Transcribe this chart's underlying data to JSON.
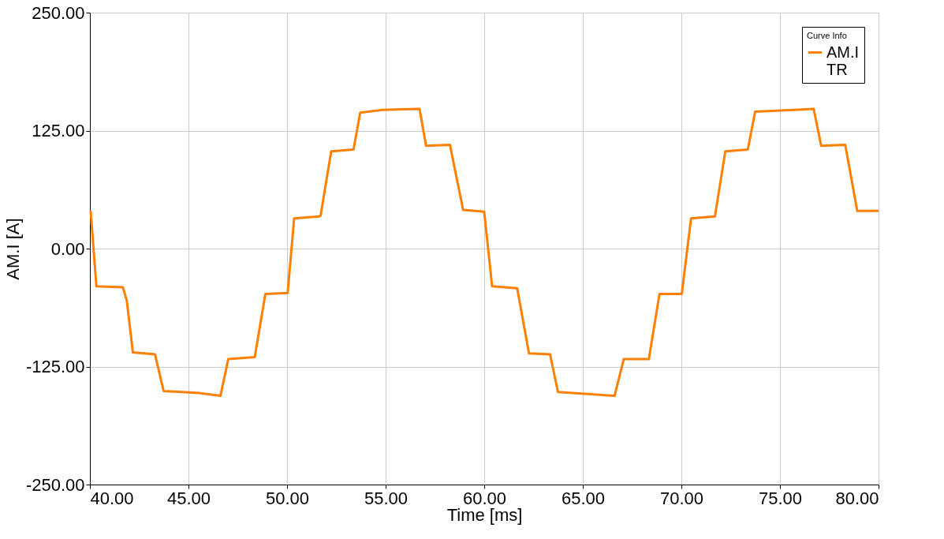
{
  "chart_data": {
    "type": "line",
    "xlabel": "Time [ms]",
    "ylabel": "AM.I [A]",
    "legend_title": "Curve Info",
    "x": [
      40.0,
      40.04,
      40.33,
      41.67,
      41.87,
      42.18,
      43.3,
      43.74,
      45.55,
      46.62,
      47.02,
      48.36,
      48.9,
      50.03,
      50.36,
      51.63,
      51.7,
      52.24,
      53.37,
      53.71,
      54.84,
      56.72,
      57.05,
      58.26,
      58.93,
      60.0,
      60.4,
      61.67,
      62.27,
      63.34,
      63.74,
      66.61,
      67.08,
      68.35,
      68.89,
      70.02,
      70.49,
      71.7,
      72.23,
      73.37,
      73.74,
      76.71,
      77.09,
      78.31,
      78.92,
      80.0
    ],
    "series": [
      {
        "name": "AM.I TR",
        "color": "#ff8000",
        "values": [
          40,
          39,
          -40,
          -41,
          -55,
          -110,
          -112,
          -151,
          -153,
          -156,
          -117,
          -115,
          -48,
          -47,
          32,
          34,
          35,
          103,
          105,
          144,
          147,
          148,
          109,
          110,
          41,
          39,
          -40,
          -42,
          -111,
          -112,
          -152,
          -156,
          -117,
          -117,
          -48,
          -48,
          32,
          34,
          103,
          105,
          145,
          148,
          109,
          110,
          40,
          40
        ]
      }
    ],
    "xlim": [
      40,
      80
    ],
    "xticks": [
      {
        "value": 40,
        "label": "40.00"
      },
      {
        "value": 45,
        "label": "45.00"
      },
      {
        "value": 50,
        "label": "50.00"
      },
      {
        "value": 55,
        "label": "55.00"
      },
      {
        "value": 60,
        "label": "60.00"
      },
      {
        "value": 65,
        "label": "65.00"
      },
      {
        "value": 70,
        "label": "70.00"
      },
      {
        "value": 75,
        "label": "75.00"
      },
      {
        "value": 80,
        "label": "80.00"
      }
    ],
    "ylim": [
      -250,
      250
    ],
    "yticks": [
      {
        "value": -250,
        "label": "-250.00"
      },
      {
        "value": -125,
        "label": "-125.00"
      },
      {
        "value": 0,
        "label": "0.00"
      },
      {
        "value": 125,
        "label": "125.00"
      },
      {
        "value": 250,
        "label": "250.00"
      }
    ],
    "grid": true,
    "legend": "top right",
    "marker": "none",
    "line_style": "solid"
  }
}
